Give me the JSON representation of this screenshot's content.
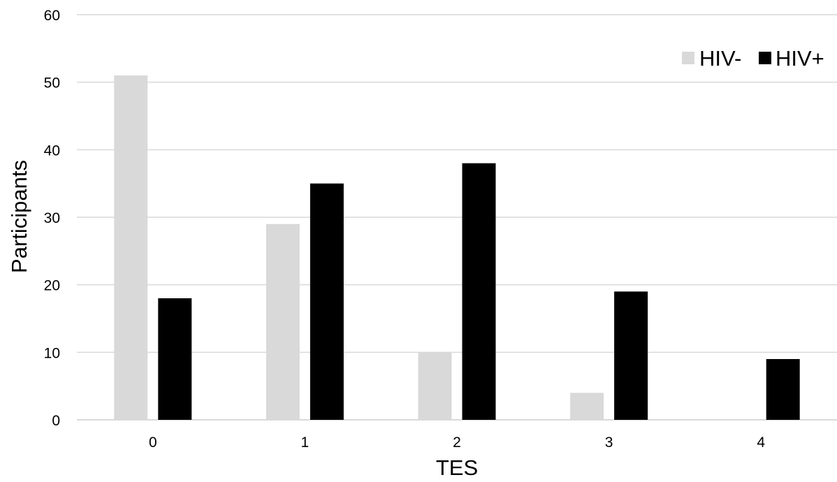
{
  "chart_data": {
    "type": "bar",
    "categories": [
      "0",
      "1",
      "2",
      "3",
      "4"
    ],
    "series": [
      {
        "name": "HIV-",
        "values": [
          51,
          29,
          10,
          4,
          0
        ],
        "color": "#d9d9d9"
      },
      {
        "name": "HIV+",
        "values": [
          18,
          35,
          38,
          19,
          9
        ],
        "color": "#000000"
      }
    ],
    "xlabel": "TES",
    "ylabel": "Participants",
    "ylim": [
      0,
      60
    ],
    "yticks": [
      0,
      10,
      20,
      30,
      40,
      50,
      60
    ],
    "grid": true,
    "legend_position": "top-right",
    "gridline_color": "#d9d9d9"
  }
}
